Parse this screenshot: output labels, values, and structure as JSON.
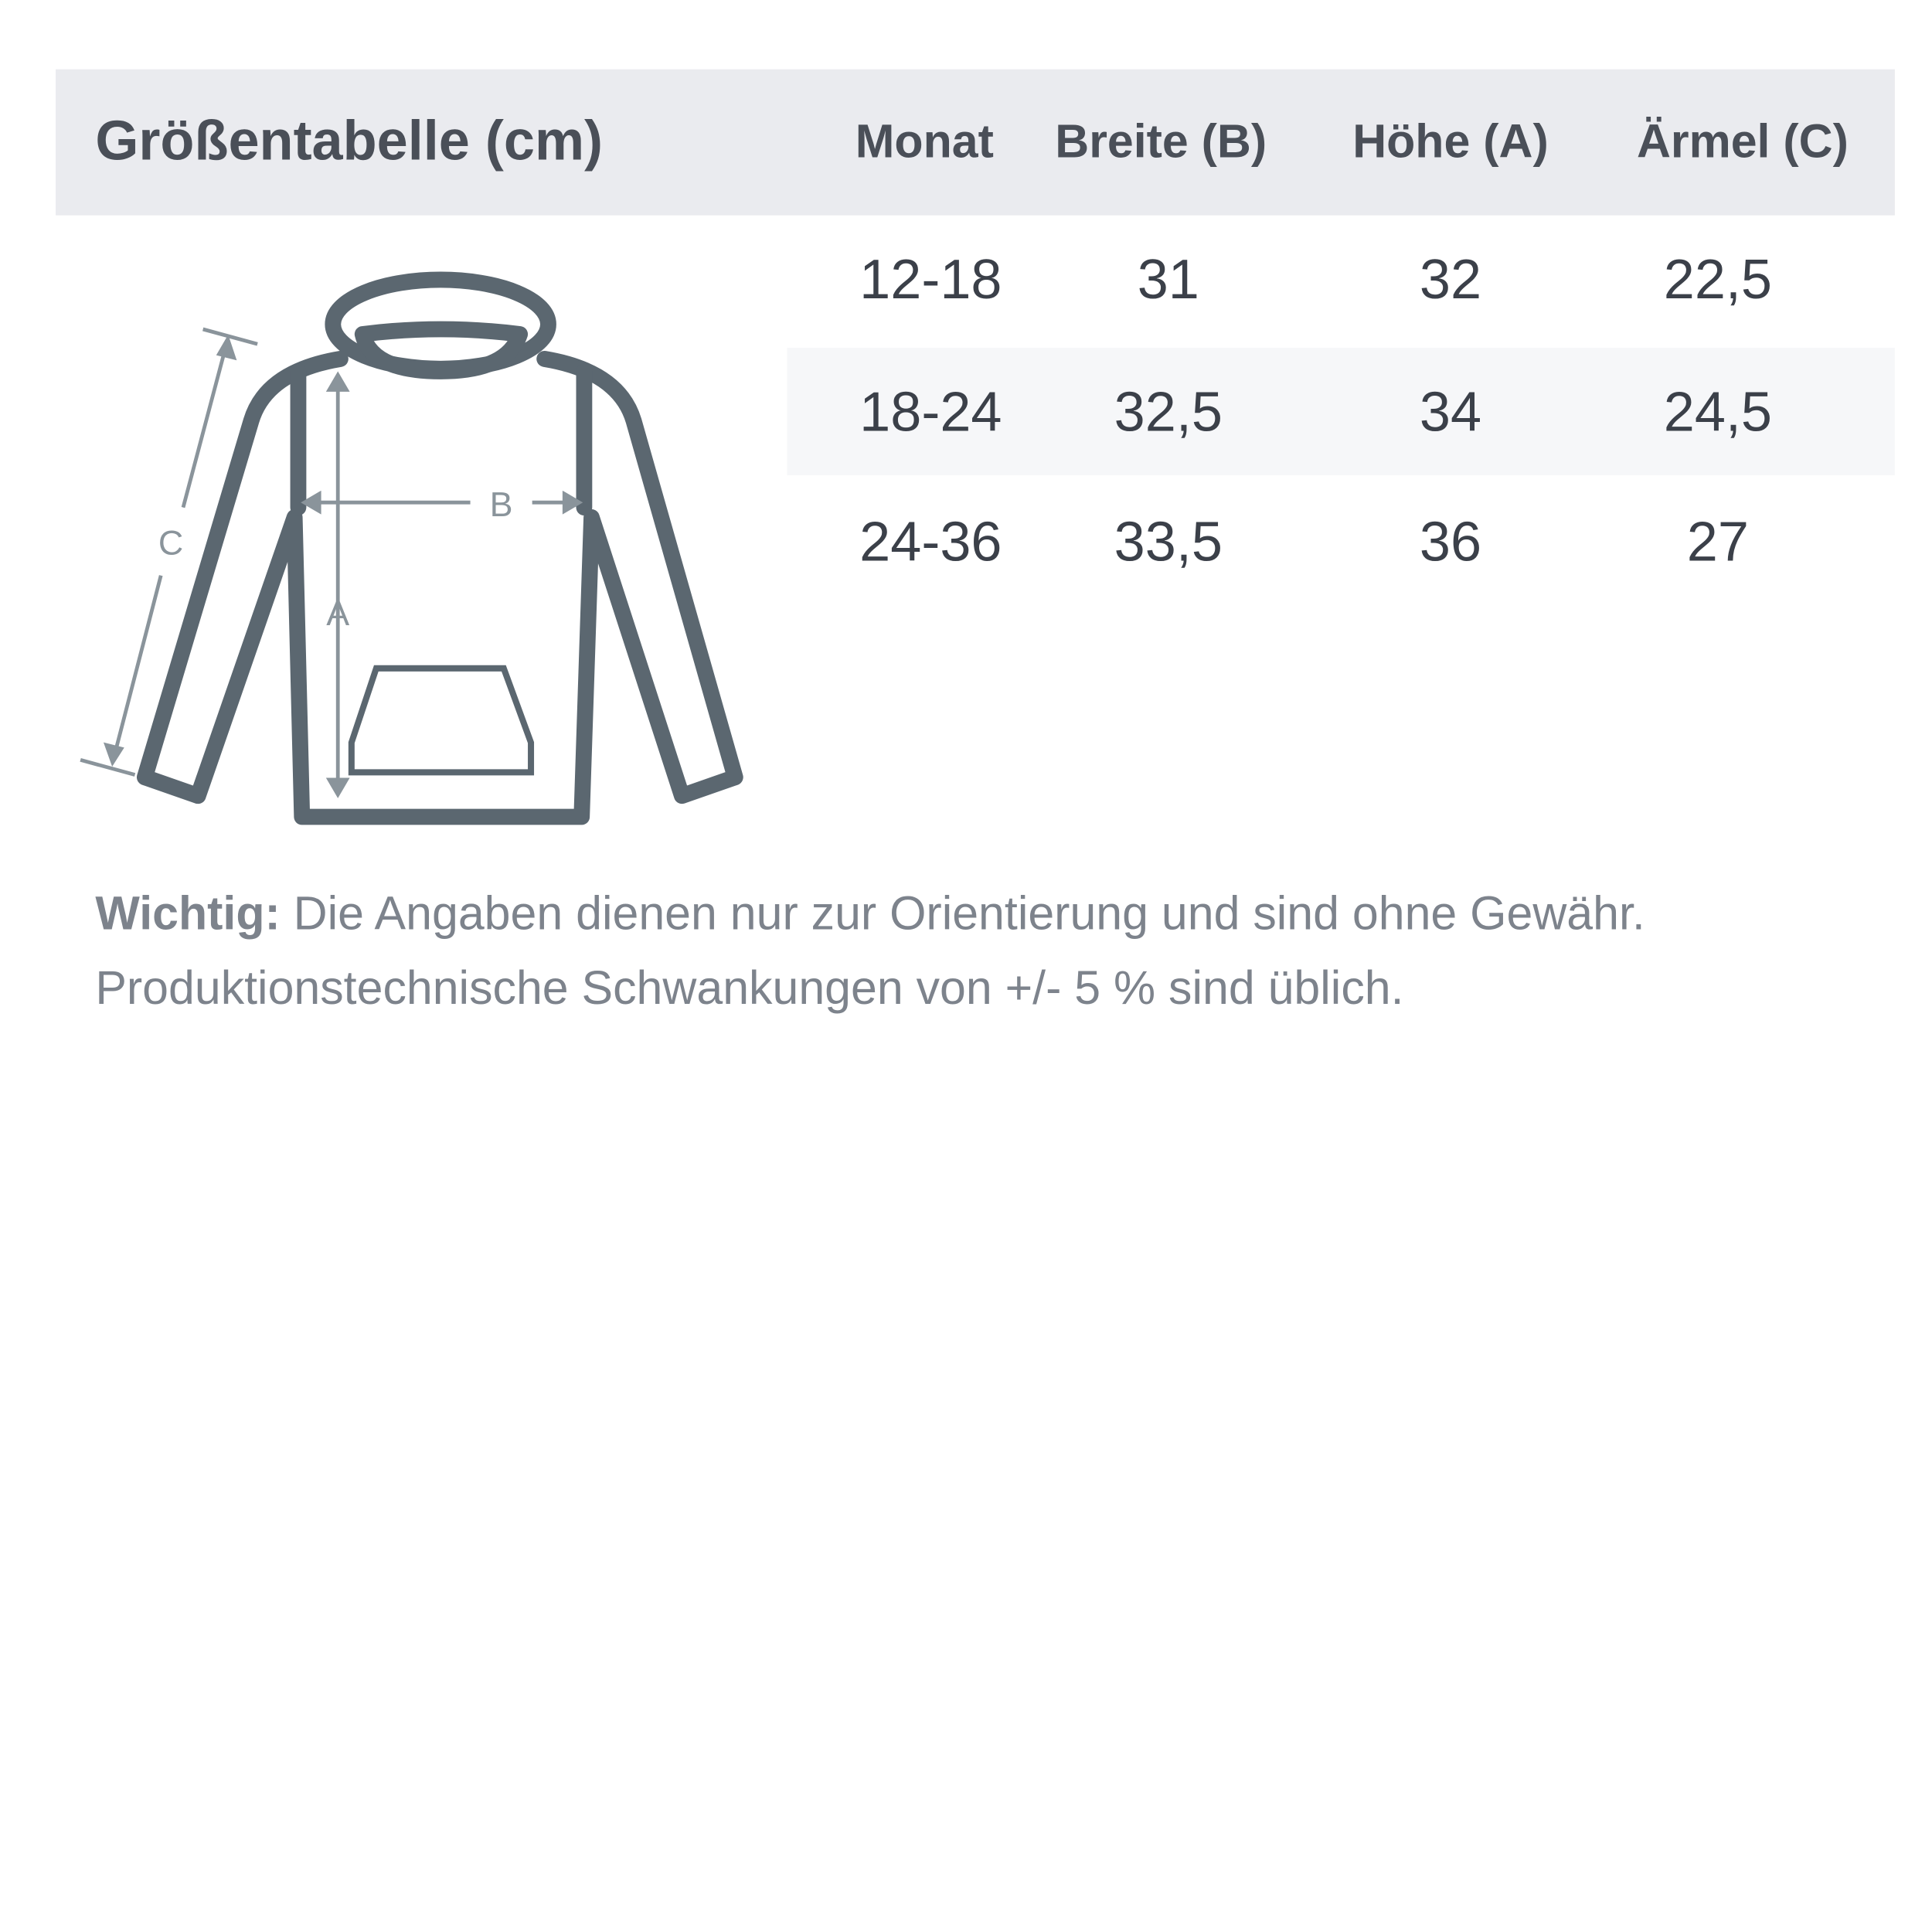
{
  "title": "Größentabelle (cm)",
  "columns": [
    "Monat",
    "Breite (B)",
    "Höhe (A)",
    "Ärmel (C)"
  ],
  "rows": [
    [
      "12-18",
      "31",
      "32",
      "22,5"
    ],
    [
      "18-24",
      "32,5",
      "34",
      "24,5"
    ],
    [
      "24-36",
      "33,5",
      "36",
      "27"
    ]
  ],
  "diagram": {
    "label_a": "A",
    "label_b": "B",
    "label_c": "C"
  },
  "note": {
    "bold": "Wichtig:",
    "line1": "Die Angaben dienen nur zur Orientierung und sind ohne Gewähr.",
    "line2": "Produktionstechnische Schwankungen von +/- 5 % sind üblich."
  },
  "colors": {
    "header_bg": "#eaebef",
    "stripe_bg": "#f6f7f9",
    "outline": "#5b6770",
    "measure": "#8a949b"
  }
}
